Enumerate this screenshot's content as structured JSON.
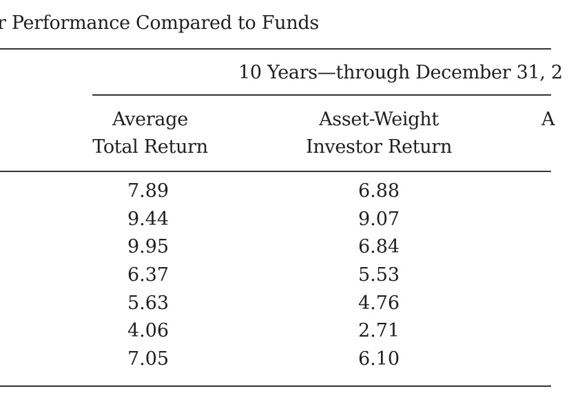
{
  "table": {
    "title": "r Performance Compared to Funds",
    "span_header": "10 Years—through December 31, 2",
    "columns": [
      {
        "header_lines": [
          "Average",
          "Total Return"
        ]
      },
      {
        "header_lines": [
          "Asset-Weight",
          "Investor Return"
        ]
      },
      {
        "header_lines": [
          "A",
          ""
        ]
      }
    ],
    "rows": [
      [
        "7.89",
        "6.88"
      ],
      [
        "9.44",
        "9.07"
      ],
      [
        "9.95",
        "6.84"
      ],
      [
        "6.37",
        "5.53"
      ],
      [
        "5.63",
        "4.76"
      ],
      [
        "4.06",
        "2.71"
      ],
      [
        "7.05",
        "6.10"
      ]
    ]
  }
}
